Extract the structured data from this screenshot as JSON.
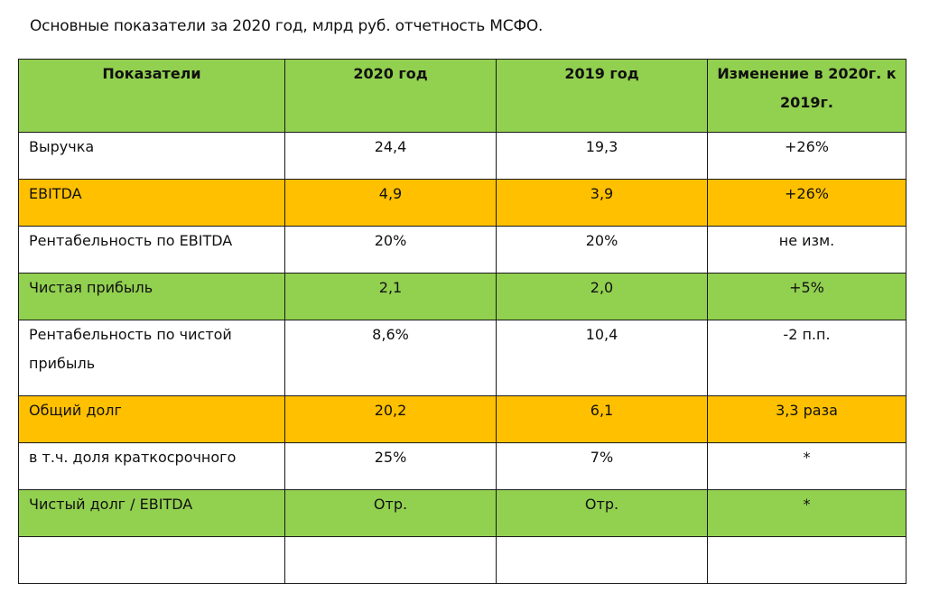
{
  "title": "Основные показатели за 2020 год, млрд руб. отчетность МСФО.",
  "table": {
    "headers": [
      "Показатели",
      "2020 год",
      "2019 год",
      "Изменение в 2020г. к 2019г."
    ],
    "rows": [
      {
        "label": "Выручка",
        "v2020": "24,4",
        "v2019": "19,3",
        "change": "+26%",
        "color": "white"
      },
      {
        "label": "EBITDA",
        "v2020": "4,9",
        "v2019": "3,9",
        "change": "+26%",
        "color": "orange"
      },
      {
        "label": "Рентабельность по EBITDA",
        "v2020": "20%",
        "v2019": "20%",
        "change": "не изм.",
        "color": "white"
      },
      {
        "label": "Чистая прибыль",
        "v2020": "2,1",
        "v2019": "2,0",
        "change": "+5%",
        "color": "green"
      },
      {
        "label": "Рентабельность по чистой прибыль",
        "v2020": "8,6%",
        "v2019": "10,4",
        "change": "-2 п.п.",
        "color": "white"
      },
      {
        "label": "Общий долг",
        "v2020": "20,2",
        "v2019": "6,1",
        "change": "3,3 раза",
        "color": "orange"
      },
      {
        "label": "в т.ч. доля краткосрочного",
        "v2020": "25%",
        "v2019": "7%",
        "change": "*",
        "color": "white"
      },
      {
        "label": "Чистый долг / EBITDA",
        "v2020": "Отр.",
        "v2019": "Отр.",
        "change": "*",
        "color": "green"
      },
      {
        "label": "",
        "v2020": "",
        "v2019": "",
        "change": "",
        "color": "white"
      }
    ]
  },
  "colors": {
    "green": "#92d050",
    "orange": "#ffc000",
    "white": "#ffffff",
    "border": "#1a1a1a"
  }
}
